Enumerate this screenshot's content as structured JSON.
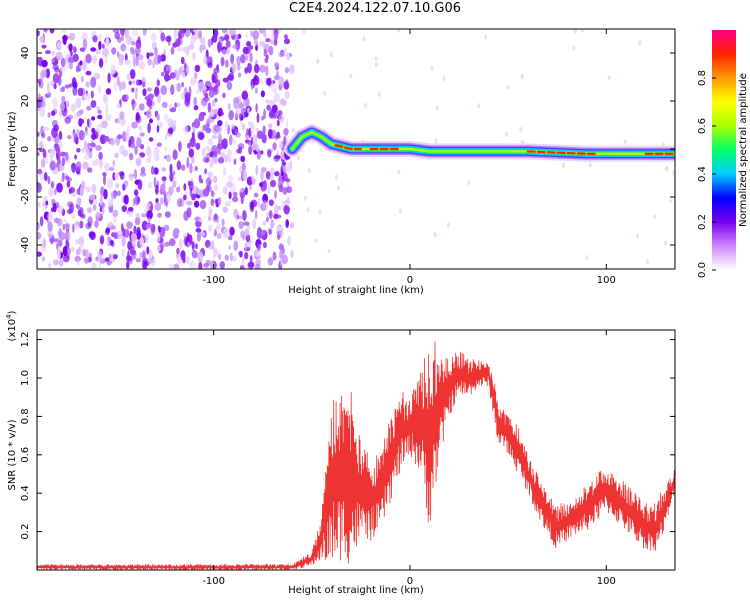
{
  "title": "C2E4.2024.122.07.10.G06",
  "chart_data": [
    {
      "type": "heatmap",
      "xlabel": "Height of straight line (km)",
      "ylabel": "Frequency (Hz)",
      "xlim": [
        -190,
        135
      ],
      "ylim": [
        -50,
        50
      ],
      "xticks": [
        -100,
        0,
        100
      ],
      "yticks": [
        -40,
        -20,
        0,
        20,
        40
      ],
      "noise_region_x": [
        -190,
        -60
      ],
      "ridge": [
        {
          "x": -60,
          "y": 0
        },
        {
          "x": -55,
          "y": 5
        },
        {
          "x": -50,
          "y": 7
        },
        {
          "x": -45,
          "y": 5
        },
        {
          "x": -40,
          "y": 2
        },
        {
          "x": -30,
          "y": 0
        },
        {
          "x": -20,
          "y": 0
        },
        {
          "x": -10,
          "y": 0
        },
        {
          "x": 0,
          "y": 0
        },
        {
          "x": 10,
          "y": -1
        },
        {
          "x": 30,
          "y": -1
        },
        {
          "x": 60,
          "y": -1
        },
        {
          "x": 90,
          "y": -2
        },
        {
          "x": 110,
          "y": -2
        },
        {
          "x": 135,
          "y": -2
        }
      ],
      "colorbar": {
        "label": "Normalized spectral amplitude",
        "range": [
          0,
          1
        ],
        "ticks": [
          0.0,
          0.2,
          0.4,
          0.6,
          0.8
        ],
        "colors": [
          "#ffffff",
          "#cc88ff",
          "#7700ee",
          "#0000ff",
          "#00ccff",
          "#00ff66",
          "#aaff00",
          "#ffff00",
          "#ff9900",
          "#ff2200",
          "#ff0088"
        ]
      }
    },
    {
      "type": "line",
      "xlabel": "Height of straight line (km)",
      "ylabel": "SNR (10 * v/v)",
      "y_multiplier": "(x10",
      "y_multiplier_exp": "4",
      "xlim": [
        -190,
        135
      ],
      "ylim": [
        0,
        1.25
      ],
      "xticks": [
        -100,
        0,
        100
      ],
      "yticks": [
        0.2,
        0.4,
        0.6,
        0.8,
        1.0,
        1.2
      ],
      "color": "#ee3333",
      "envelope": [
        {
          "x": -190,
          "lo": 0.0,
          "hi": 0.03
        },
        {
          "x": -60,
          "lo": 0.0,
          "hi": 0.03
        },
        {
          "x": -50,
          "lo": 0.02,
          "hi": 0.1
        },
        {
          "x": -45,
          "lo": 0.05,
          "hi": 0.3
        },
        {
          "x": -40,
          "lo": 0.0,
          "hi": 0.92
        },
        {
          "x": -35,
          "lo": 0.05,
          "hi": 0.95
        },
        {
          "x": -30,
          "lo": 0.02,
          "hi": 1.0
        },
        {
          "x": -25,
          "lo": 0.15,
          "hi": 0.65
        },
        {
          "x": -20,
          "lo": 0.15,
          "hi": 0.6
        },
        {
          "x": -15,
          "lo": 0.2,
          "hi": 0.6
        },
        {
          "x": -10,
          "lo": 0.35,
          "hi": 0.8
        },
        {
          "x": -5,
          "lo": 0.5,
          "hi": 0.95
        },
        {
          "x": 0,
          "lo": 0.6,
          "hi": 0.9
        },
        {
          "x": 5,
          "lo": 0.5,
          "hi": 1.05
        },
        {
          "x": 10,
          "lo": 0.2,
          "hi": 1.25
        },
        {
          "x": 15,
          "lo": 0.55,
          "hi": 1.15
        },
        {
          "x": 20,
          "lo": 0.8,
          "hi": 1.1
        },
        {
          "x": 25,
          "lo": 0.9,
          "hi": 1.15
        },
        {
          "x": 30,
          "lo": 0.9,
          "hi": 1.1
        },
        {
          "x": 35,
          "lo": 0.95,
          "hi": 1.1
        },
        {
          "x": 40,
          "lo": 0.95,
          "hi": 1.1
        },
        {
          "x": 45,
          "lo": 0.65,
          "hi": 0.9
        },
        {
          "x": 50,
          "lo": 0.6,
          "hi": 0.8
        },
        {
          "x": 55,
          "lo": 0.5,
          "hi": 0.75
        },
        {
          "x": 60,
          "lo": 0.4,
          "hi": 0.6
        },
        {
          "x": 65,
          "lo": 0.28,
          "hi": 0.5
        },
        {
          "x": 70,
          "lo": 0.18,
          "hi": 0.4
        },
        {
          "x": 75,
          "lo": 0.1,
          "hi": 0.35
        },
        {
          "x": 80,
          "lo": 0.15,
          "hi": 0.35
        },
        {
          "x": 85,
          "lo": 0.18,
          "hi": 0.4
        },
        {
          "x": 90,
          "lo": 0.2,
          "hi": 0.45
        },
        {
          "x": 95,
          "lo": 0.25,
          "hi": 0.5
        },
        {
          "x": 100,
          "lo": 0.3,
          "hi": 0.55
        },
        {
          "x": 105,
          "lo": 0.25,
          "hi": 0.5
        },
        {
          "x": 110,
          "lo": 0.2,
          "hi": 0.45
        },
        {
          "x": 115,
          "lo": 0.15,
          "hi": 0.4
        },
        {
          "x": 120,
          "lo": 0.1,
          "hi": 0.35
        },
        {
          "x": 125,
          "lo": 0.1,
          "hi": 0.35
        },
        {
          "x": 130,
          "lo": 0.2,
          "hi": 0.45
        },
        {
          "x": 135,
          "lo": 0.4,
          "hi": 0.55
        }
      ]
    }
  ]
}
